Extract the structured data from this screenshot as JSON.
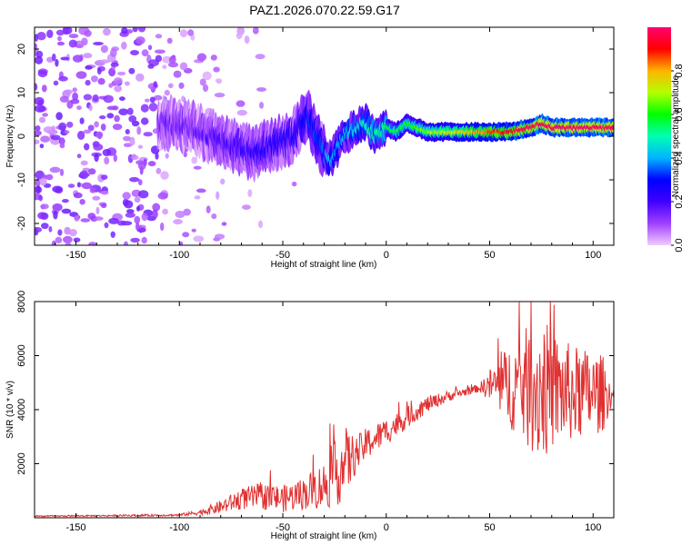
{
  "title": "PAZ1.2026.070.22.59.G17",
  "chart_data": [
    {
      "type": "heatmap",
      "name": "spectrogram",
      "xlabel": "Height of straight line (km)",
      "ylabel": "Frequency (Hz)",
      "xlim": [
        -170,
        110
      ],
      "ylim": [
        -25,
        25
      ],
      "xticks": [
        -150,
        -100,
        -50,
        0,
        50,
        100
      ],
      "yticks": [
        -20,
        -10,
        0,
        10,
        20
      ],
      "colorbar": {
        "label": "Normalized spectral amplitude",
        "range": [
          0,
          1
        ],
        "ticks": [
          0.0,
          0.2,
          0.4,
          0.6,
          0.8
        ],
        "colors": [
          "#f2ccff",
          "#a040ff",
          "#4000ff",
          "#0000ff",
          "#00b4ff",
          "#00ffb4",
          "#00ff00",
          "#b4ff00",
          "#ffb400",
          "#ff0000",
          "#ff0070"
        ]
      },
      "signal_ridge": {
        "x": [
          -105,
          -95,
          -85,
          -75,
          -65,
          -55,
          -45,
          -38,
          -33,
          -28,
          -20,
          -15,
          -10,
          -5,
          0,
          5,
          10,
          15,
          20,
          30,
          40,
          50,
          60,
          70,
          75,
          80,
          90,
          100,
          110
        ],
        "y": [
          3,
          2,
          0,
          -2,
          -4,
          -2,
          0,
          5,
          -1,
          -6,
          0,
          2,
          3,
          0,
          2,
          1,
          3,
          2,
          1,
          1,
          1,
          1,
          1,
          2,
          3,
          2,
          2,
          2,
          2
        ]
      }
    },
    {
      "type": "line",
      "name": "snr",
      "xlabel": "Height of straight line (km)",
      "ylabel": "SNR (10 * v/v)",
      "xlim": [
        -170,
        110
      ],
      "ylim": [
        0,
        8000
      ],
      "xticks": [
        -150,
        -100,
        -50,
        0,
        50,
        100
      ],
      "yticks": [
        2000,
        4000,
        6000,
        8000
      ],
      "color": "#e03030",
      "envelope": {
        "x": [
          -170,
          -130,
          -100,
          -90,
          -80,
          -70,
          -60,
          -50,
          -40,
          -30,
          -25,
          -20,
          -15,
          -10,
          0,
          10,
          20,
          30,
          40,
          45,
          50,
          60,
          70,
          75,
          80,
          90,
          100,
          105,
          110
        ],
        "y": [
          60,
          80,
          100,
          200,
          400,
          700,
          800,
          700,
          900,
          1200,
          1600,
          2000,
          2300,
          2700,
          3200,
          3700,
          4200,
          4500,
          4700,
          4800,
          4900,
          4900,
          4800,
          4800,
          4700,
          4600,
          4600,
          4600,
          4500
        ],
        "noise": [
          20,
          30,
          40,
          100,
          250,
          400,
          500,
          500,
          600,
          900,
          1200,
          1400,
          700,
          600,
          500,
          400,
          300,
          200,
          150,
          150,
          600,
          1600,
          2400,
          2800,
          2200,
          1800,
          1600,
          1400,
          100
        ]
      }
    }
  ]
}
